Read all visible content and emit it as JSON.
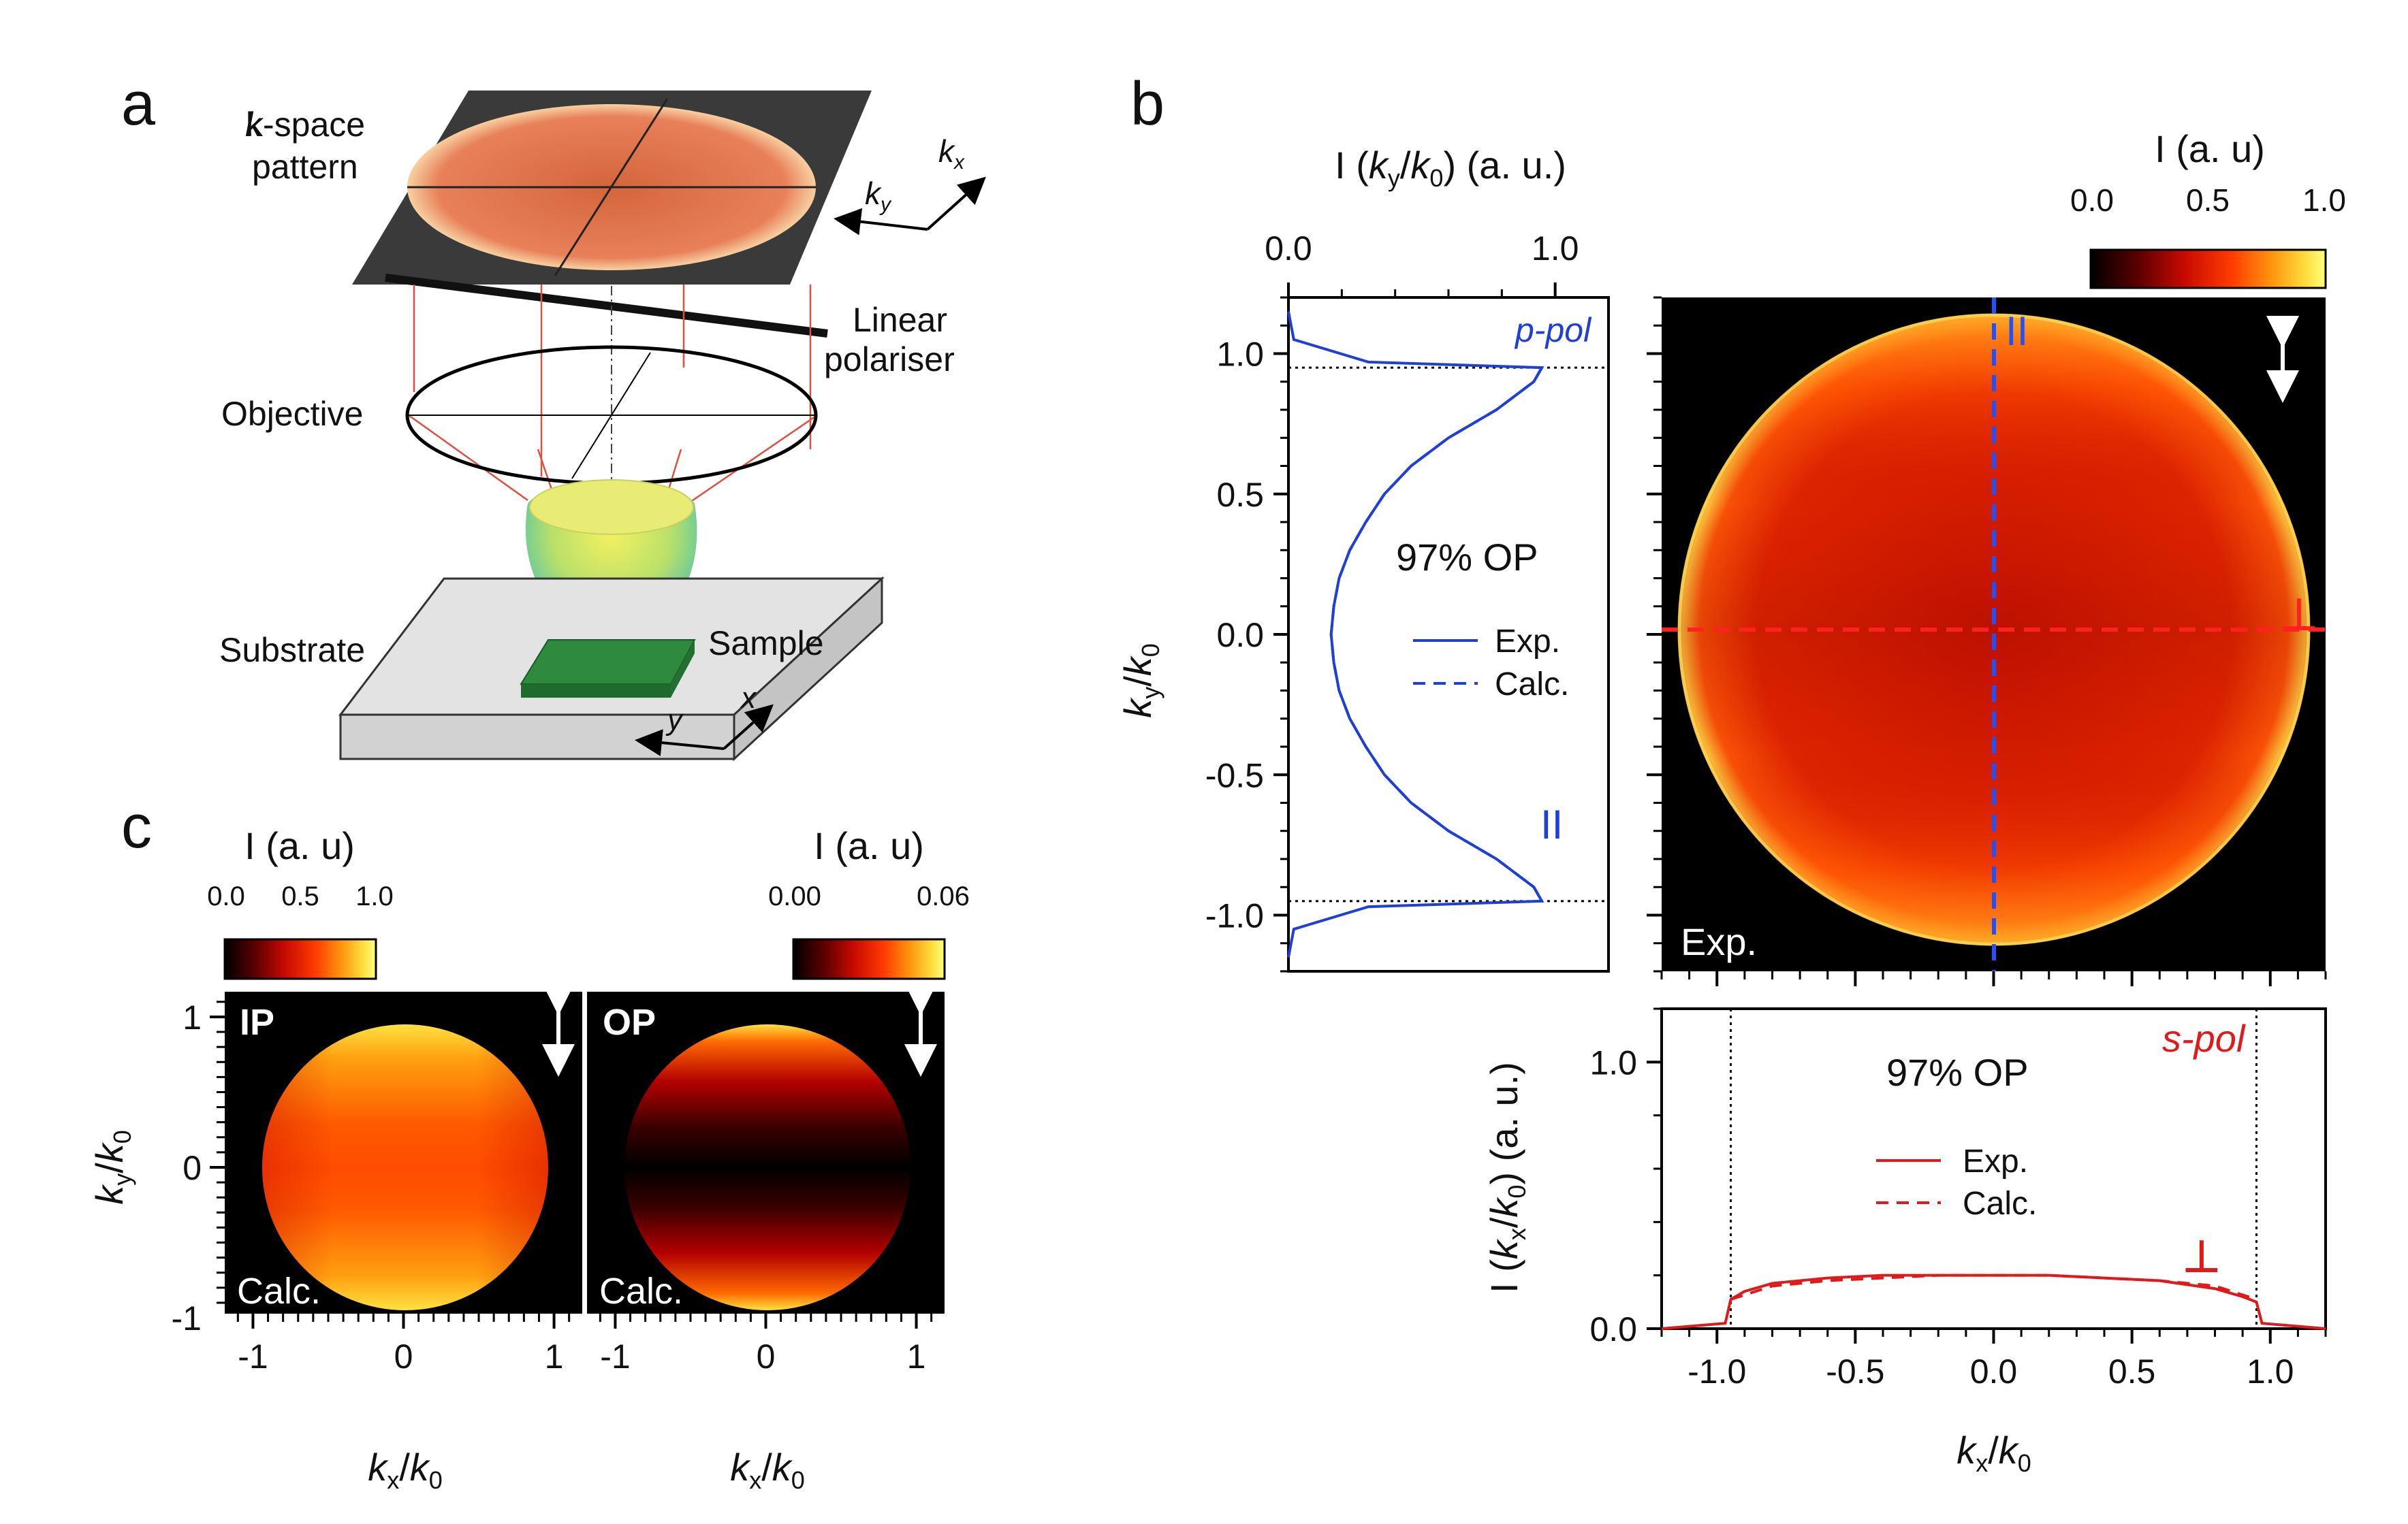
{
  "panel_labels": {
    "a": "a",
    "b": "b",
    "c": "c"
  },
  "schematic": {
    "kspace": "k-space",
    "pattern": "pattern",
    "kx": "k",
    "kx_sub": "x",
    "ky": "k",
    "ky_sub": "y",
    "polariser_line1": "Linear",
    "polariser_line2": "polariser",
    "objective": "Objective",
    "substrate": "Substrate",
    "sample": "Sample",
    "x": "x",
    "y": "y"
  },
  "colors": {
    "pol_blue": "#1f3fd6",
    "pol_red": "#e0191b",
    "cmap": [
      "#000000",
      "#5a0000",
      "#c80a00",
      "#ff3c00",
      "#ff9a10",
      "#ffe040",
      "#ffff80"
    ]
  },
  "chart_data": [
    {
      "id": "b-left",
      "type": "line",
      "title": "I (ky/k0) (a. u.)",
      "xlabel": "I (ky/k0) (a. u.)",
      "ylabel": "ky/k0",
      "xlim": [
        0,
        1.2
      ],
      "ylim": [
        -1.2,
        1.2
      ],
      "xticks": [
        "0.0",
        "1.0"
      ],
      "yticks": [
        "1.0",
        "0.5",
        "0.0",
        "-0.5",
        "-1.0"
      ],
      "series": [
        {
          "name": "Exp.",
          "y": [
            1.15,
            1.05,
            0.97,
            0.95,
            0.9,
            0.8,
            0.7,
            0.6,
            0.5,
            0.4,
            0.3,
            0.2,
            0.1,
            0.0,
            -0.1,
            -0.2,
            -0.3,
            -0.4,
            -0.5,
            -0.6,
            -0.7,
            -0.8,
            -0.9,
            -0.95,
            -0.97,
            -1.05,
            -1.15
          ],
          "x": [
            0.0,
            0.02,
            0.3,
            0.95,
            0.92,
            0.78,
            0.6,
            0.46,
            0.36,
            0.29,
            0.23,
            0.19,
            0.17,
            0.16,
            0.17,
            0.19,
            0.23,
            0.29,
            0.36,
            0.46,
            0.6,
            0.78,
            0.92,
            0.95,
            0.3,
            0.02,
            0.0
          ]
        },
        {
          "name": "Calc.",
          "y": [
            0.95,
            0.9,
            0.8,
            0.7,
            0.6,
            0.5,
            0.4,
            0.3,
            0.2,
            0.1,
            0.0,
            -0.1,
            -0.2,
            -0.3,
            -0.4,
            -0.5,
            -0.6,
            -0.7,
            -0.8,
            -0.9,
            -0.95
          ],
          "x": [
            0.95,
            0.92,
            0.78,
            0.6,
            0.46,
            0.36,
            0.29,
            0.23,
            0.19,
            0.17,
            0.16,
            0.17,
            0.19,
            0.23,
            0.29,
            0.36,
            0.46,
            0.6,
            0.78,
            0.92,
            0.95
          ]
        }
      ],
      "annotations": {
        "pol": "p-pol",
        "op": "97% OP",
        "parallel": "II",
        "legend_exp": "Exp.",
        "legend_calc": "Calc."
      }
    },
    {
      "id": "b-map",
      "type": "heatmap",
      "label": "Exp.",
      "colorbar": {
        "title": "I (a. u)",
        "ticks": [
          "0.0",
          "0.5",
          "1.0"
        ]
      },
      "parallel": "II",
      "perp": "⊥",
      "na_radius": 0.95
    },
    {
      "id": "b-bottom",
      "type": "line",
      "xlabel": "kx/k0",
      "ylabel": "I (kx/k0) (a. u.)",
      "xlim": [
        -1.2,
        1.2
      ],
      "ylim": [
        0,
        1.2
      ],
      "xticks": [
        "-1.0",
        "-0.5",
        "0.0",
        "0.5",
        "1.0"
      ],
      "yticks": [
        "1.0",
        "0.0"
      ],
      "series": [
        {
          "name": "Exp.",
          "x": [
            -1.2,
            -0.97,
            -0.95,
            -0.9,
            -0.8,
            -0.6,
            -0.4,
            -0.2,
            0.0,
            0.2,
            0.4,
            0.6,
            0.8,
            0.9,
            0.95,
            0.97,
            1.2
          ],
          "y": [
            0.0,
            0.02,
            0.11,
            0.14,
            0.17,
            0.19,
            0.2,
            0.2,
            0.2,
            0.2,
            0.19,
            0.18,
            0.15,
            0.12,
            0.1,
            0.02,
            0.0
          ]
        },
        {
          "name": "Calc.",
          "x": [
            -0.95,
            -0.8,
            -0.6,
            -0.4,
            -0.2,
            0.0,
            0.2,
            0.4,
            0.6,
            0.8,
            0.95
          ],
          "y": [
            0.11,
            0.16,
            0.18,
            0.19,
            0.2,
            0.2,
            0.2,
            0.19,
            0.18,
            0.16,
            0.11
          ]
        }
      ],
      "annotations": {
        "pol": "s-pol",
        "op": "97% OP",
        "perp": "⊥",
        "legend_exp": "Exp.",
        "legend_calc": "Calc."
      }
    },
    {
      "id": "c-ip",
      "type": "heatmap",
      "label": "IP",
      "calc": "Calc.",
      "colorbar": {
        "title": "I (a. u)",
        "ticks": [
          "0.0",
          "0.5",
          "1.0"
        ]
      },
      "xlabel": "kx/k0",
      "ylabel": "ky/k0",
      "xticks": [
        "-1",
        "0",
        "1"
      ],
      "yticks": [
        "1",
        "0",
        "-1"
      ]
    },
    {
      "id": "c-op",
      "type": "heatmap",
      "label": "OP",
      "calc": "Calc.",
      "colorbar": {
        "title": "I (a. u)",
        "ticks": [
          "0.00",
          "0.06"
        ]
      },
      "xlabel": "kx/k0",
      "xticks": [
        "-1",
        "0",
        "1"
      ]
    }
  ]
}
